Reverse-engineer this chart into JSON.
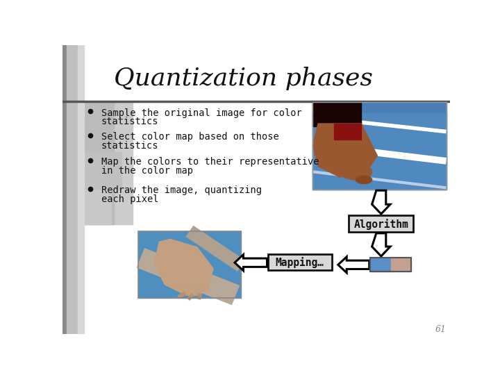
{
  "title": "Quantization phases",
  "bg_color": "#ffffff",
  "bullet_points": [
    [
      "Sample the original image for color",
      "statistics"
    ],
    [
      "Select color map based on those",
      "statistics"
    ],
    [
      "Map the colors to their representative",
      "in the color map"
    ],
    [
      "Redraw the image, quantizing",
      "each pixel"
    ]
  ],
  "algorithm_box_text": "Algorithm",
  "mapping_box_text": "Mapping…",
  "color_patch_blue": "#5b8fc9",
  "color_patch_pink": "#c4a090",
  "page_number": "61",
  "left_bar_dark": "#a0a0a0",
  "left_bar_mid": "#c0c0c0",
  "left_bar_light": "#d8d8d8",
  "bullet_bg_dark": "#bebebe",
  "bullet_bg_light": "#d4d4d4",
  "title_line_color": "#555555",
  "photo_blue": "#5090c8",
  "photo_white_line": "#ffffff",
  "photo_skin": "#a0603a",
  "photo_dark": "#1a0808",
  "qimg_blue": "#5090c0",
  "qimg_skin": "#c0a090",
  "qimg_skin2": "#b09080",
  "arrow_fill": "#ffffff",
  "arrow_edge": "#111111",
  "box_fill": "#d8d8d8",
  "box_edge": "#111111",
  "text_color": "#111111",
  "page_color": "#888888"
}
